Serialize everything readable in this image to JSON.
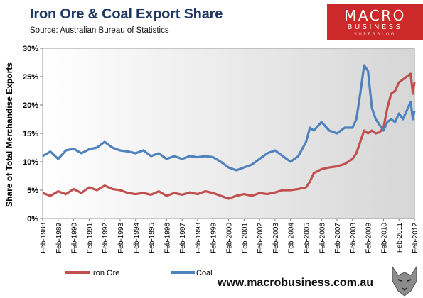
{
  "header": {
    "title": "Iron Ore & Coal Export Share",
    "subtitle": "Source:  Australian Bureau of Statistics"
  },
  "logo": {
    "line1": "MACRO",
    "line2": "BUSINESS",
    "line3": "SUPERBLOG"
  },
  "footer": {
    "url": "www.macrobusiness.com.au"
  },
  "colors": {
    "iron_ore": "#c0504d",
    "coal": "#4f81bd",
    "title": "#1f3864",
    "logo_bg": "#cc2a2a"
  },
  "chart_data": {
    "type": "line",
    "title": "Iron Ore & Coal Export Share",
    "ylabel": "Share of Total Merchandise Exports",
    "xlabel": "",
    "ylim": [
      0,
      30
    ],
    "yticks": [
      "0%",
      "5%",
      "10%",
      "15%",
      "20%",
      "25%",
      "30%"
    ],
    "xticks": [
      "Feb-1988",
      "Feb-1989",
      "Feb-1990",
      "Feb-1991",
      "Feb-1992",
      "Feb-1993",
      "Feb-1994",
      "Feb-1995",
      "Feb-1996",
      "Feb-1997",
      "Feb-1998",
      "Feb-1999",
      "Feb-2000",
      "Feb-2001",
      "Feb-2002",
      "Feb-2003",
      "Feb-2004",
      "Feb-2005",
      "Feb-2006",
      "Feb-2007",
      "Feb-2008",
      "Feb-2009",
      "Feb-2010",
      "Feb-2011",
      "Feb-2012"
    ],
    "x": [
      1988.0,
      1988.5,
      1989.0,
      1989.5,
      1990.0,
      1990.5,
      1991.0,
      1991.5,
      1992.0,
      1992.5,
      1993.0,
      1993.5,
      1994.0,
      1994.5,
      1995.0,
      1995.5,
      1996.0,
      1996.5,
      1997.0,
      1997.5,
      1998.0,
      1998.5,
      1999.0,
      1999.5,
      2000.0,
      2000.5,
      2001.0,
      2001.5,
      2002.0,
      2002.5,
      2003.0,
      2003.5,
      2004.0,
      2004.5,
      2005.0,
      2005.25,
      2005.5,
      2006.0,
      2006.5,
      2007.0,
      2007.5,
      2008.0,
      2008.25,
      2008.5,
      2008.75,
      2009.0,
      2009.25,
      2009.5,
      2009.75,
      2010.0,
      2010.25,
      2010.5,
      2010.75,
      2011.0,
      2011.25,
      2011.5,
      2011.75,
      2011.9,
      2012.0
    ],
    "series": [
      {
        "name": "Iron Ore",
        "values": [
          4.5,
          4.0,
          4.8,
          4.3,
          5.2,
          4.5,
          5.5,
          5.0,
          5.8,
          5.2,
          5.0,
          4.5,
          4.3,
          4.5,
          4.2,
          4.8,
          4.0,
          4.5,
          4.2,
          4.6,
          4.3,
          4.8,
          4.5,
          4.0,
          3.5,
          4.0,
          4.3,
          4.0,
          4.5,
          4.3,
          4.6,
          5.0,
          5.0,
          5.2,
          5.5,
          6.5,
          8.0,
          8.7,
          9.0,
          9.2,
          9.6,
          10.5,
          11.5,
          13.5,
          15.5,
          15.0,
          15.5,
          15.0,
          15.2,
          16.0,
          19.5,
          22.0,
          22.5,
          24.0,
          24.5,
          25.0,
          25.5,
          22.0,
          24.0
        ]
      },
      {
        "name": "Coal",
        "values": [
          11.0,
          11.8,
          10.5,
          12.0,
          12.3,
          11.5,
          12.2,
          12.5,
          13.5,
          12.5,
          12.0,
          11.8,
          11.5,
          12.0,
          11.0,
          11.5,
          10.5,
          11.0,
          10.5,
          11.0,
          10.8,
          11.0,
          10.8,
          10.0,
          9.0,
          8.5,
          9.0,
          9.5,
          10.5,
          11.5,
          12.0,
          11.0,
          10.0,
          11.0,
          13.5,
          16.0,
          15.5,
          17.0,
          15.5,
          15.0,
          16.0,
          16.0,
          17.5,
          22.0,
          27.0,
          26.0,
          19.5,
          17.5,
          16.5,
          15.5,
          17.0,
          17.5,
          17.0,
          18.5,
          17.5,
          19.0,
          20.5,
          17.5,
          19.0
        ]
      }
    ],
    "legend": {
      "position": "bottom",
      "entries": [
        "Iron Ore",
        "Coal"
      ]
    },
    "grid": false,
    "plot_background": "gray gradient"
  }
}
